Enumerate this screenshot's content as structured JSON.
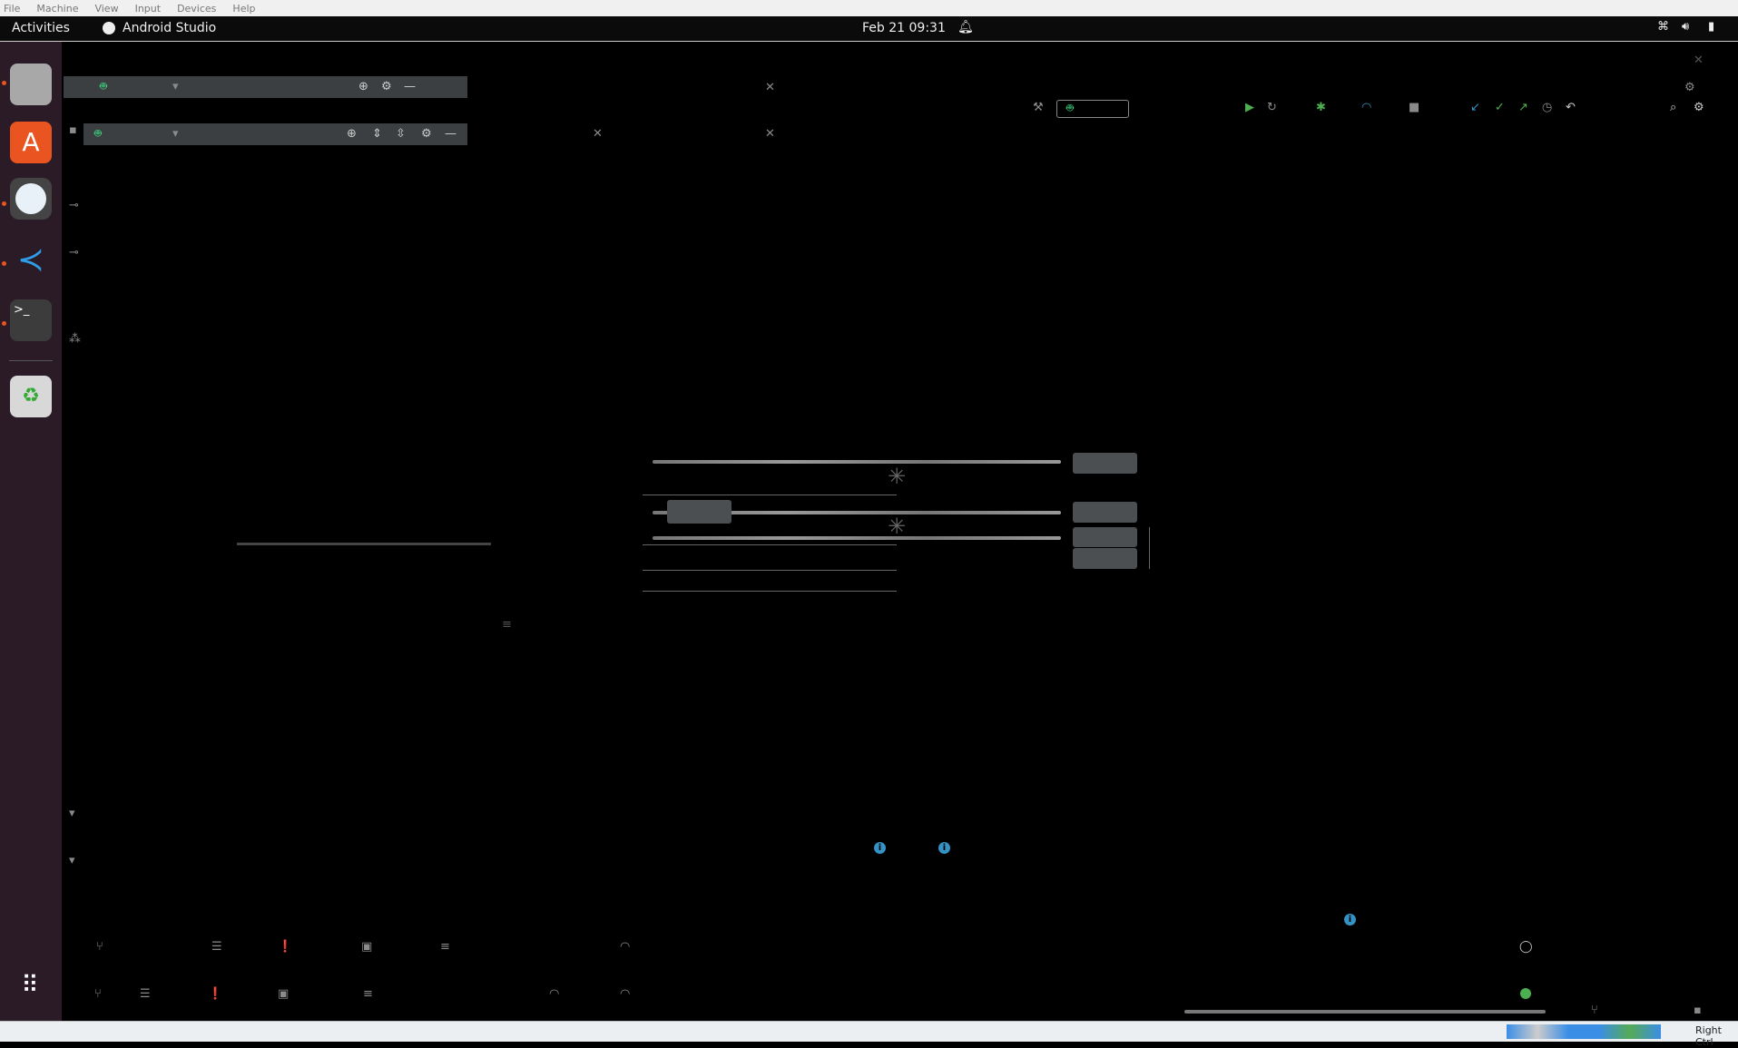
{
  "vbox_menu": [
    "File",
    "Machine",
    "View",
    "Input",
    "Devices",
    "Help"
  ],
  "topbar": {
    "activities": "Activities",
    "app_name": "Android Studio",
    "datetime": "Feb 21  09:31"
  },
  "dock": [
    {
      "name": "files",
      "color": "#9a9a9a"
    },
    {
      "name": "app-center",
      "color": "#e95420"
    },
    {
      "name": "android-studio",
      "color": "#3a3a3a"
    },
    {
      "name": "vscode",
      "color": "#2a1b26"
    },
    {
      "name": "terminal",
      "color": "#3a3a3a"
    },
    {
      "name": "trash",
      "color": "#d8d8d8"
    }
  ],
  "statusbar": {
    "host_key": "Right Ctrl"
  },
  "colors": {
    "accent_green": "#3ddc84",
    "info_blue": "#3592c4",
    "toolbar": "#3c3f41"
  }
}
